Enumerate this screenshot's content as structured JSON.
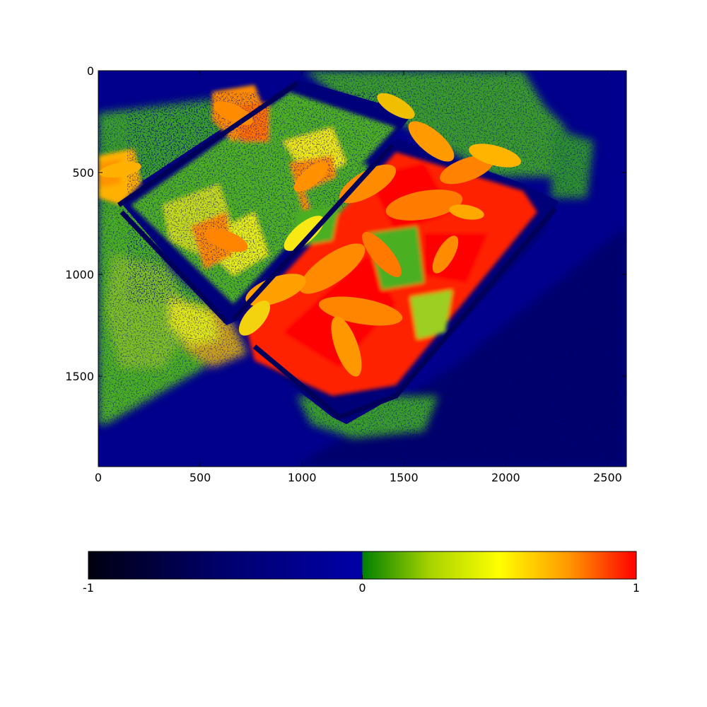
{
  "chart_data": {
    "type": "heatmap",
    "title": "",
    "xlabel": "",
    "ylabel": "",
    "xlim": [
      0,
      2592
    ],
    "ylim": [
      1944,
      0
    ],
    "xticks": [
      0,
      500,
      1000,
      1500,
      2000,
      2500
    ],
    "yticks": [
      0,
      500,
      1000,
      1500
    ],
    "grid": false,
    "image": {
      "description": "False-color vegetation index image: two planter trays with leafy plants (high values, orange to red) on ground (low values, dark blue)",
      "value_range": [
        -1,
        1
      ]
    },
    "colorbar": {
      "orientation": "horizontal",
      "placement": "bottom",
      "ticks": [
        -1,
        0,
        1
      ],
      "tick_labels": [
        "-1",
        "0",
        "1"
      ],
      "colormap": [
        {
          "value": -1,
          "color": "#000010"
        },
        {
          "value": -0.5,
          "color": "#00006e"
        },
        {
          "value": 0,
          "color": "#0000a8"
        },
        {
          "value": 0.0001,
          "color": "#008000"
        },
        {
          "value": 0.25,
          "color": "#a8d400"
        },
        {
          "value": 0.5,
          "color": "#ffff00"
        },
        {
          "value": 0.75,
          "color": "#ff9a00"
        },
        {
          "value": 1,
          "color": "#ff0000"
        }
      ]
    }
  },
  "colors": {
    "background_blue": "#00008c",
    "deep_blue": "#00006a",
    "green": "#4caf22",
    "yellow": "#f5ef14",
    "orange": "#ff8c00",
    "red": "#ff1a00"
  }
}
